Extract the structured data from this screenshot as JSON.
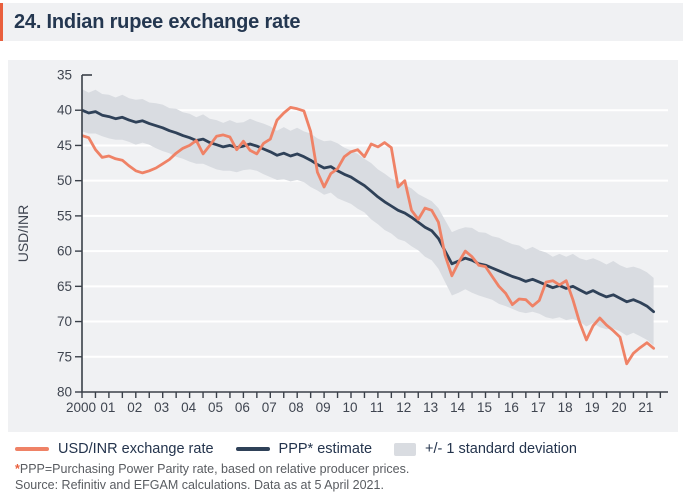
{
  "header": {
    "title": "24. Indian rupee exchange rate"
  },
  "legend": {
    "items": [
      {
        "label": "USD/INR exchange rate",
        "swatch": "line",
        "color": "#ef8266"
      },
      {
        "label": "PPP* estimate",
        "swatch": "line",
        "color": "#2f4158"
      },
      {
        "label": "+/- 1 standard deviation",
        "swatch": "band",
        "color": "#d9dce1"
      }
    ]
  },
  "footnotes": {
    "star": "*",
    "line1": "PPP=Purchasing Power Parity rate, based on relative producer prices.",
    "line2": "Source: Refinitiv and EFGAM calculations. Data as at 5 April 2021."
  },
  "colors": {
    "accent_orange": "#e95f3d",
    "line_fx": "#ef8266",
    "line_ppp": "#2f4158",
    "band": "#d9dce1",
    "panel_bg": "#f0f1f3",
    "grid": "#ffffff",
    "axis": "#3a4049",
    "title_text": "#243750",
    "footnote_text": "#595c61"
  },
  "chart_data": {
    "type": "line",
    "title": "24. Indian rupee exchange rate",
    "xlabel": "",
    "ylabel": "USD/INR",
    "y_inverted": true,
    "ylim": [
      35,
      80
    ],
    "y_ticks": [
      35,
      40,
      45,
      50,
      55,
      60,
      65,
      70,
      75,
      80
    ],
    "x_tick_labels": [
      "2000",
      "01",
      "02",
      "03",
      "04",
      "05",
      "06",
      "07",
      "08",
      "09",
      "10",
      "11",
      "12",
      "13",
      "14",
      "15",
      "16",
      "17",
      "18",
      "19",
      "20",
      "21"
    ],
    "grid": true,
    "legend_position": "bottom",
    "x": [
      2000,
      2000.25,
      2000.5,
      2000.75,
      2001,
      2001.25,
      2001.5,
      2001.75,
      2002,
      2002.25,
      2002.5,
      2002.75,
      2003,
      2003.25,
      2003.5,
      2003.75,
      2004,
      2004.25,
      2004.5,
      2004.75,
      2005,
      2005.25,
      2005.5,
      2005.75,
      2006,
      2006.25,
      2006.5,
      2006.75,
      2007,
      2007.25,
      2007.5,
      2007.75,
      2008,
      2008.25,
      2008.5,
      2008.75,
      2009,
      2009.25,
      2009.5,
      2009.75,
      2010,
      2010.25,
      2010.5,
      2010.75,
      2011,
      2011.25,
      2011.5,
      2011.75,
      2012,
      2012.25,
      2012.5,
      2012.75,
      2013,
      2013.25,
      2013.5,
      2013.75,
      2014,
      2014.25,
      2014.5,
      2014.75,
      2015,
      2015.25,
      2015.5,
      2015.75,
      2016,
      2016.25,
      2016.5,
      2016.75,
      2017,
      2017.25,
      2017.5,
      2017.75,
      2018,
      2018.25,
      2018.5,
      2018.75,
      2019,
      2019.25,
      2019.5,
      2019.75,
      2020,
      2020.25,
      2020.5,
      2020.75,
      2021,
      2021.25
    ],
    "series": [
      {
        "name": "USD/INR exchange rate",
        "color": "#ef8266",
        "values": [
          43.6,
          43.9,
          45.6,
          46.7,
          46.5,
          46.9,
          47.1,
          47.9,
          48.6,
          48.9,
          48.6,
          48.2,
          47.6,
          47.0,
          46.1,
          45.4,
          45.0,
          44.3,
          46.2,
          45.0,
          43.7,
          43.5,
          43.8,
          45.6,
          44.4,
          45.7,
          46.2,
          44.7,
          44.1,
          41.4,
          40.4,
          39.6,
          39.8,
          40.1,
          43.0,
          48.8,
          50.9,
          49.0,
          48.3,
          46.6,
          45.9,
          45.6,
          46.6,
          44.8,
          45.2,
          44.6,
          45.3,
          50.9,
          50.0,
          54.2,
          55.5,
          53.9,
          54.2,
          55.9,
          60.6,
          63.5,
          61.6,
          60.0,
          60.8,
          62.0,
          62.2,
          63.6,
          65.0,
          66.0,
          67.6,
          66.8,
          66.9,
          67.8,
          67.0,
          64.4,
          64.2,
          64.8,
          64.2,
          66.9,
          70.1,
          72.6,
          70.6,
          69.5,
          70.5,
          71.3,
          72.2,
          76.0,
          74.5,
          73.7,
          73.0,
          73.8
        ]
      },
      {
        "name": "PPP* estimate",
        "color": "#2f4158",
        "values": [
          40.0,
          40.4,
          40.2,
          40.7,
          40.9,
          41.2,
          41.0,
          41.4,
          41.7,
          41.5,
          41.9,
          42.2,
          42.5,
          42.9,
          43.2,
          43.6,
          43.9,
          44.3,
          44.1,
          44.6,
          44.9,
          45.2,
          45.0,
          45.3,
          45.1,
          44.8,
          45.1,
          45.5,
          45.9,
          46.4,
          46.1,
          46.5,
          46.2,
          46.6,
          47.1,
          47.7,
          48.2,
          48.0,
          48.6,
          49.1,
          49.5,
          50.1,
          50.7,
          51.5,
          52.3,
          53.0,
          53.6,
          54.2,
          54.6,
          55.2,
          55.9,
          56.6,
          57.1,
          58.2,
          60.0,
          61.8,
          61.4,
          61.0,
          61.3,
          61.8,
          62.0,
          62.4,
          62.8,
          63.2,
          63.6,
          63.9,
          64.3,
          64.0,
          64.4,
          64.8,
          65.2,
          64.9,
          65.3,
          65.0,
          65.5,
          66.0,
          65.6,
          66.1,
          66.5,
          66.2,
          66.7,
          67.2,
          66.9,
          67.3,
          67.8,
          68.6
        ]
      },
      {
        "name": "+/- 1 standard deviation",
        "type": "band_around_series",
        "around": "PPP* estimate",
        "color": "#d9dce1",
        "halfwidth": [
          3.0,
          2.9,
          3.1,
          3.0,
          3.1,
          3.0,
          3.2,
          3.1,
          3.2,
          3.1,
          3.0,
          3.2,
          3.3,
          3.2,
          3.4,
          3.3,
          3.4,
          3.3,
          3.5,
          3.4,
          3.5,
          3.4,
          3.6,
          3.5,
          3.4,
          3.6,
          3.5,
          3.6,
          3.6,
          3.5,
          3.7,
          3.6,
          3.7,
          3.6,
          3.8,
          3.7,
          3.8,
          3.7,
          3.9,
          3.8,
          3.8,
          3.9,
          3.8,
          4.0,
          3.9,
          4.0,
          3.9,
          4.1,
          4.0,
          4.1,
          4.0,
          4.2,
          4.2,
          4.3,
          4.4,
          4.5,
          4.5,
          4.4,
          4.6,
          4.5,
          4.6,
          4.5,
          4.7,
          4.6,
          4.6,
          4.7,
          4.5,
          4.6,
          4.5,
          4.6,
          4.4,
          4.5,
          4.5,
          4.6,
          4.5,
          4.7,
          4.6,
          4.7,
          4.6,
          4.8,
          4.7,
          4.8,
          4.7,
          4.8,
          4.8,
          4.8
        ]
      }
    ]
  }
}
